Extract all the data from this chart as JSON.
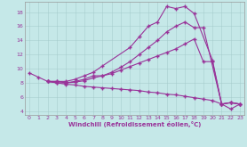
{
  "xlabel": "Windchill (Refroidissement éolien,°C)",
  "background_color": "#c5e8e8",
  "line_color": "#993399",
  "xlim": [
    -0.5,
    23.5
  ],
  "ylim": [
    3.5,
    19.5
  ],
  "xticks": [
    0,
    1,
    2,
    3,
    4,
    5,
    6,
    7,
    8,
    9,
    10,
    11,
    12,
    13,
    14,
    15,
    16,
    17,
    18,
    19,
    20,
    21,
    22,
    23
  ],
  "yticks": [
    4,
    6,
    8,
    10,
    12,
    14,
    16,
    18
  ],
  "lines": [
    {
      "x": [
        0,
        1,
        2,
        3,
        4,
        5,
        6,
        7,
        8,
        11,
        12,
        13,
        14,
        15,
        16,
        17,
        18,
        20,
        21,
        22,
        23
      ],
      "y": [
        9.4,
        8.8,
        8.2,
        8.2,
        8.2,
        8.5,
        9.0,
        9.5,
        10.4,
        13.0,
        14.5,
        16.0,
        16.6,
        18.8,
        18.5,
        18.8,
        17.8,
        11.2,
        5.0,
        4.3,
        5.0
      ]
    },
    {
      "x": [
        2,
        3,
        4,
        5,
        6,
        7,
        8,
        9,
        10,
        11,
        12,
        13,
        14,
        15,
        16,
        17,
        18,
        19,
        21,
        22,
        23
      ],
      "y": [
        8.2,
        8.2,
        8.0,
        8.2,
        8.5,
        9.0,
        9.0,
        9.5,
        10.2,
        11.0,
        12.0,
        13.0,
        14.0,
        15.2,
        16.0,
        16.6,
        15.8,
        15.8,
        5.0,
        5.2,
        5.0
      ]
    },
    {
      "x": [
        2,
        3,
        4,
        5,
        6,
        7,
        8,
        9,
        10,
        11,
        12,
        13,
        14,
        15,
        16,
        17,
        18,
        19,
        20,
        21,
        22,
        23
      ],
      "y": [
        8.2,
        8.0,
        8.0,
        8.1,
        8.3,
        8.7,
        9.0,
        9.3,
        9.8,
        10.3,
        10.8,
        11.3,
        11.8,
        12.3,
        12.8,
        13.5,
        14.2,
        11.0,
        11.0,
        5.0,
        5.2,
        5.0
      ]
    },
    {
      "x": [
        2,
        3,
        4,
        5,
        6,
        7,
        8,
        9,
        10,
        11,
        12,
        13,
        14,
        15,
        16,
        17,
        18,
        19,
        20,
        21,
        22,
        23
      ],
      "y": [
        8.2,
        8.0,
        7.8,
        7.7,
        7.5,
        7.4,
        7.3,
        7.2,
        7.1,
        7.0,
        6.9,
        6.7,
        6.6,
        6.4,
        6.3,
        6.1,
        5.9,
        5.7,
        5.5,
        5.0,
        5.2,
        5.0
      ]
    }
  ]
}
